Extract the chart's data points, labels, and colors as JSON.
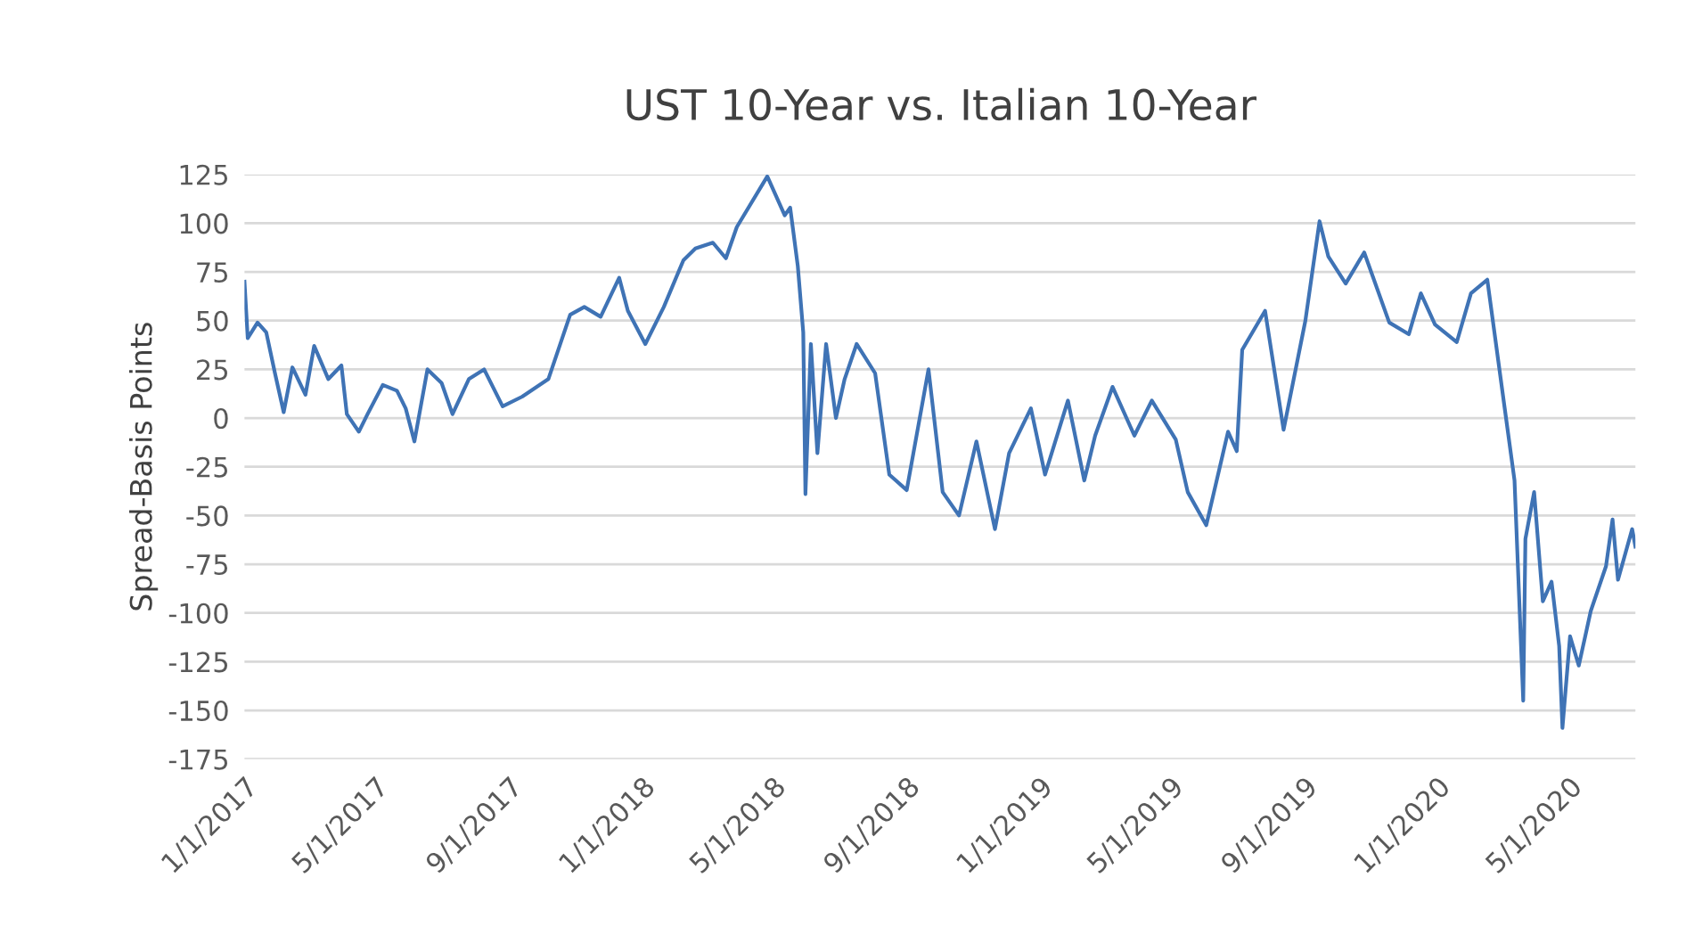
{
  "chart_data": {
    "type": "line",
    "title": "UST 10-Year vs. Italian 10-Year",
    "ylabel": "Spread-Basis Points",
    "grid": "y",
    "legend": false,
    "line_style": "solid",
    "marker": "none",
    "xlim": [
      "2017-01-01",
      "2020-07-01"
    ],
    "xticks": [
      {
        "value": "2017-01-01",
        "label": "1/1/2017"
      },
      {
        "value": "2017-05-01",
        "label": "5/1/2017"
      },
      {
        "value": "2017-09-01",
        "label": "9/1/2017"
      },
      {
        "value": "2018-01-01",
        "label": "1/1/2018"
      },
      {
        "value": "2018-05-01",
        "label": "5/1/2018"
      },
      {
        "value": "2018-09-01",
        "label": "9/1/2018"
      },
      {
        "value": "2019-01-01",
        "label": "1/1/2019"
      },
      {
        "value": "2019-05-01",
        "label": "5/1/2019"
      },
      {
        "value": "2019-09-01",
        "label": "9/1/2019"
      },
      {
        "value": "2020-01-01",
        "label": "1/1/2020"
      },
      {
        "value": "2020-05-01",
        "label": "5/1/2020"
      }
    ],
    "ylim": [
      -175,
      125
    ],
    "yticks": [
      -175,
      -150,
      -125,
      -100,
      -75,
      -50,
      -25,
      0,
      25,
      50,
      75,
      100,
      125
    ],
    "series": [
      {
        "color": "#3f73b5",
        "x": [
          "2017-01-01",
          "2017-01-04",
          "2017-01-13",
          "2017-01-21",
          "2017-01-29",
          "2017-02-06",
          "2017-02-14",
          "2017-02-26",
          "2017-03-06",
          "2017-03-19",
          "2017-03-31",
          "2017-04-05",
          "2017-04-16",
          "2017-04-24",
          "2017-05-08",
          "2017-05-21",
          "2017-05-29",
          "2017-06-06",
          "2017-06-18",
          "2017-07-01",
          "2017-07-11",
          "2017-07-26",
          "2017-08-09",
          "2017-08-26",
          "2017-09-13",
          "2017-10-07",
          "2017-10-27",
          "2017-11-09",
          "2017-11-24",
          "2017-12-11",
          "2017-12-19",
          "2018-01-04",
          "2018-01-21",
          "2018-02-08",
          "2018-02-19",
          "2018-03-07",
          "2018-03-19",
          "2018-03-29",
          "2018-04-26",
          "2018-05-12",
          "2018-05-17",
          "2018-05-24",
          "2018-05-29",
          "2018-05-31",
          "2018-06-05",
          "2018-06-11",
          "2018-06-19",
          "2018-06-28",
          "2018-07-06",
          "2018-07-17",
          "2018-08-03",
          "2018-08-16",
          "2018-09-01",
          "2018-09-21",
          "2018-10-04",
          "2018-10-19",
          "2018-11-04",
          "2018-11-21",
          "2018-12-04",
          "2018-12-24",
          "2019-01-06",
          "2019-01-27",
          "2019-02-11",
          "2019-02-21",
          "2019-03-09",
          "2019-03-29",
          "2019-04-14",
          "2019-05-06",
          "2019-05-17",
          "2019-06-03",
          "2019-06-23",
          "2019-07-01",
          "2019-07-06",
          "2019-07-27",
          "2019-08-13",
          "2019-09-02",
          "2019-09-15",
          "2019-09-23",
          "2019-10-09",
          "2019-10-26",
          "2019-11-18",
          "2019-12-06",
          "2019-12-17",
          "2019-12-30",
          "2020-01-19",
          "2020-02-01",
          "2020-02-16",
          "2020-03-03",
          "2020-03-12",
          "2020-03-20",
          "2020-03-22",
          "2020-03-30",
          "2020-04-07",
          "2020-04-15",
          "2020-04-22",
          "2020-04-25",
          "2020-05-02",
          "2020-05-10",
          "2020-05-21",
          "2020-06-04",
          "2020-06-10",
          "2020-06-15",
          "2020-06-28",
          "2020-07-01"
        ],
        "values": [
          70,
          41,
          49,
          44,
          23,
          3,
          26,
          12,
          37,
          20,
          27,
          2,
          -7,
          2,
          17,
          14,
          5,
          -12,
          25,
          18,
          2,
          20,
          25,
          6,
          11,
          20,
          53,
          57,
          52,
          72,
          55,
          38,
          57,
          81,
          87,
          90,
          82,
          98,
          124,
          104,
          108,
          78,
          44,
          -39,
          38,
          -18,
          38,
          0,
          20,
          38,
          23,
          -29,
          -37,
          25,
          -38,
          -50,
          -12,
          -57,
          -18,
          5,
          -29,
          9,
          -32,
          -9,
          16,
          -9,
          9,
          -11,
          -38,
          -55,
          -7,
          -17,
          35,
          55,
          -6,
          50,
          101,
          83,
          69,
          85,
          49,
          43,
          64,
          48,
          39,
          64,
          71,
          5,
          -32,
          -145,
          -62,
          -38,
          -94,
          -84,
          -117,
          -159,
          -112,
          -127,
          -99,
          -76,
          -52,
          -83,
          -57,
          -66
        ]
      }
    ]
  }
}
